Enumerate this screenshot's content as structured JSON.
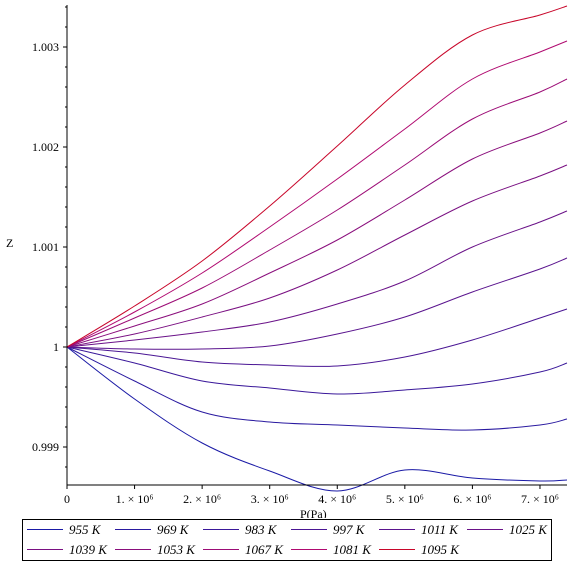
{
  "chart_data": {
    "type": "line",
    "xlabel": "P(Pa)",
    "ylabel": "Z",
    "xlim": [
      0,
      7400000
    ],
    "ylim": [
      0.99862,
      1.00342
    ],
    "x_ticks": [
      {
        "value": 0,
        "label": "0"
      },
      {
        "value": 1000000,
        "label": "1. × 10⁶"
      },
      {
        "value": 2000000,
        "label": "2. × 10⁶"
      },
      {
        "value": 3000000,
        "label": "3. × 10⁶"
      },
      {
        "value": 4000000,
        "label": "4. × 10⁶"
      },
      {
        "value": 5000000,
        "label": "5. × 10⁶"
      },
      {
        "value": 6000000,
        "label": "6. × 10⁶"
      },
      {
        "value": 7000000,
        "label": "7. × 10⁶"
      }
    ],
    "y_ticks": [
      {
        "value": 0.999,
        "label": "0.999"
      },
      {
        "value": 1.0,
        "label": "1"
      },
      {
        "value": 1.001,
        "label": "1.001"
      },
      {
        "value": 1.002,
        "label": "1.002"
      },
      {
        "value": 1.003,
        "label": "1.003"
      }
    ],
    "x": [
      0,
      1000000,
      2000000,
      3000000,
      4000000,
      5000000,
      6000000,
      7000000,
      7400000
    ],
    "series": [
      {
        "name": "955 K",
        "color": "#1a1aa6",
        "values": [
          1.0,
          0.99948,
          0.99904,
          0.99876,
          0.99856,
          0.99877,
          0.99869,
          0.99866,
          0.99867
        ]
      },
      {
        "name": "969 K",
        "color": "#2a1aa0",
        "values": [
          1.0,
          0.99966,
          0.99935,
          0.99925,
          0.99922,
          0.99919,
          0.99917,
          0.99922,
          0.99928
        ]
      },
      {
        "name": "983 K",
        "color": "#3a189a",
        "values": [
          1.0,
          0.99984,
          0.99966,
          0.99959,
          0.99953,
          0.99957,
          0.99963,
          0.99975,
          0.99984
        ]
      },
      {
        "name": "997 K",
        "color": "#4a1694",
        "values": [
          1.0,
          0.99994,
          0.99985,
          0.99982,
          0.99981,
          0.9999,
          1.00007,
          1.00029,
          1.00038
        ]
      },
      {
        "name": "1011 K",
        "color": "#5a148e",
        "values": [
          1.0,
          0.99998,
          0.99998,
          1.00001,
          1.00013,
          1.0003,
          1.00055,
          1.00078,
          1.00089
        ]
      },
      {
        "name": "1025 K",
        "color": "#6a1288",
        "values": [
          1.0,
          1.00007,
          1.00015,
          1.00025,
          1.00043,
          1.00066,
          1.001,
          1.00125,
          1.00136
        ]
      },
      {
        "name": "1039 K",
        "color": "#7a1082",
        "values": [
          1.0,
          1.00013,
          1.0003,
          1.00049,
          1.00077,
          1.00112,
          1.00146,
          1.00171,
          1.00182
        ]
      },
      {
        "name": "1053 K",
        "color": "#8a0e7c",
        "values": [
          1.0,
          1.00021,
          1.00043,
          1.00074,
          1.00107,
          1.00147,
          1.00188,
          1.00214,
          1.00226
        ]
      },
      {
        "name": "1067 K",
        "color": "#9c0c76",
        "values": [
          1.0,
          1.00029,
          1.00059,
          1.00097,
          1.00137,
          1.00182,
          1.00228,
          1.00255,
          1.00268
        ]
      },
      {
        "name": "1081 K",
        "color": "#b00a70",
        "values": [
          1.0,
          1.00035,
          1.00074,
          1.0012,
          1.00168,
          1.00218,
          1.00268,
          1.00295,
          1.00306
        ]
      },
      {
        "name": "1095 K",
        "color": "#c8062a",
        "values": [
          1.0,
          1.00041,
          1.00086,
          1.00141,
          1.00201,
          1.00262,
          1.00312,
          1.00332,
          1.00341
        ]
      }
    ],
    "legend_placement": "bottom"
  }
}
